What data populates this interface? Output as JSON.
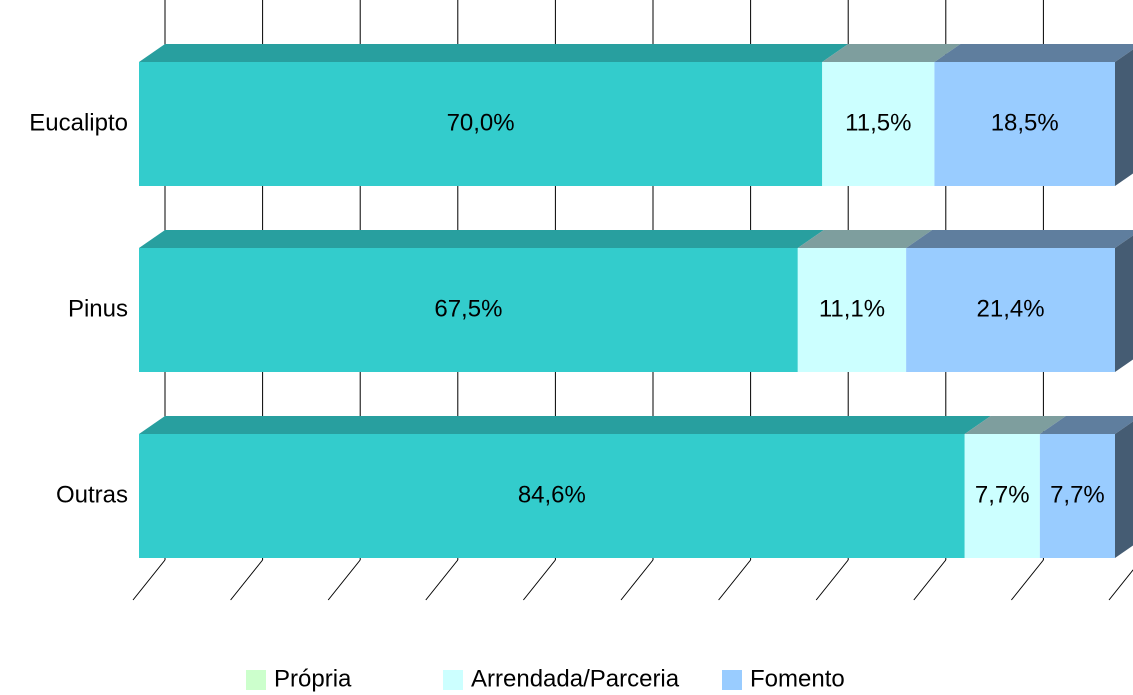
{
  "chart_data": {
    "type": "bar",
    "orientation": "horizontal",
    "stacked": true,
    "categories": [
      "Eucalipto",
      "Pinus",
      "Outras"
    ],
    "series": [
      {
        "name": "Própria",
        "color": "#33cccc",
        "legend_color": "#ccffcc",
        "values": [
          70.0,
          67.5,
          84.6
        ],
        "value_labels": [
          "70,0%",
          "67,5%",
          "84,6%"
        ]
      },
      {
        "name": "Arrendada/Parceria",
        "color": "#ccffff",
        "values": [
          11.5,
          11.1,
          7.7
        ],
        "value_labels": [
          "11,5%",
          "11,1%",
          "7,7%"
        ]
      },
      {
        "name": "Fomento",
        "color": "#99ccff",
        "values": [
          18.5,
          21.4,
          7.7
        ],
        "value_labels": [
          "18,5%",
          "21,4%",
          "7,7%"
        ]
      }
    ],
    "xlim": [
      0,
      100
    ],
    "xticks": [
      0,
      10,
      20,
      30,
      40,
      50,
      60,
      70,
      80,
      90,
      100
    ],
    "grid": true,
    "legend": "bottom"
  }
}
